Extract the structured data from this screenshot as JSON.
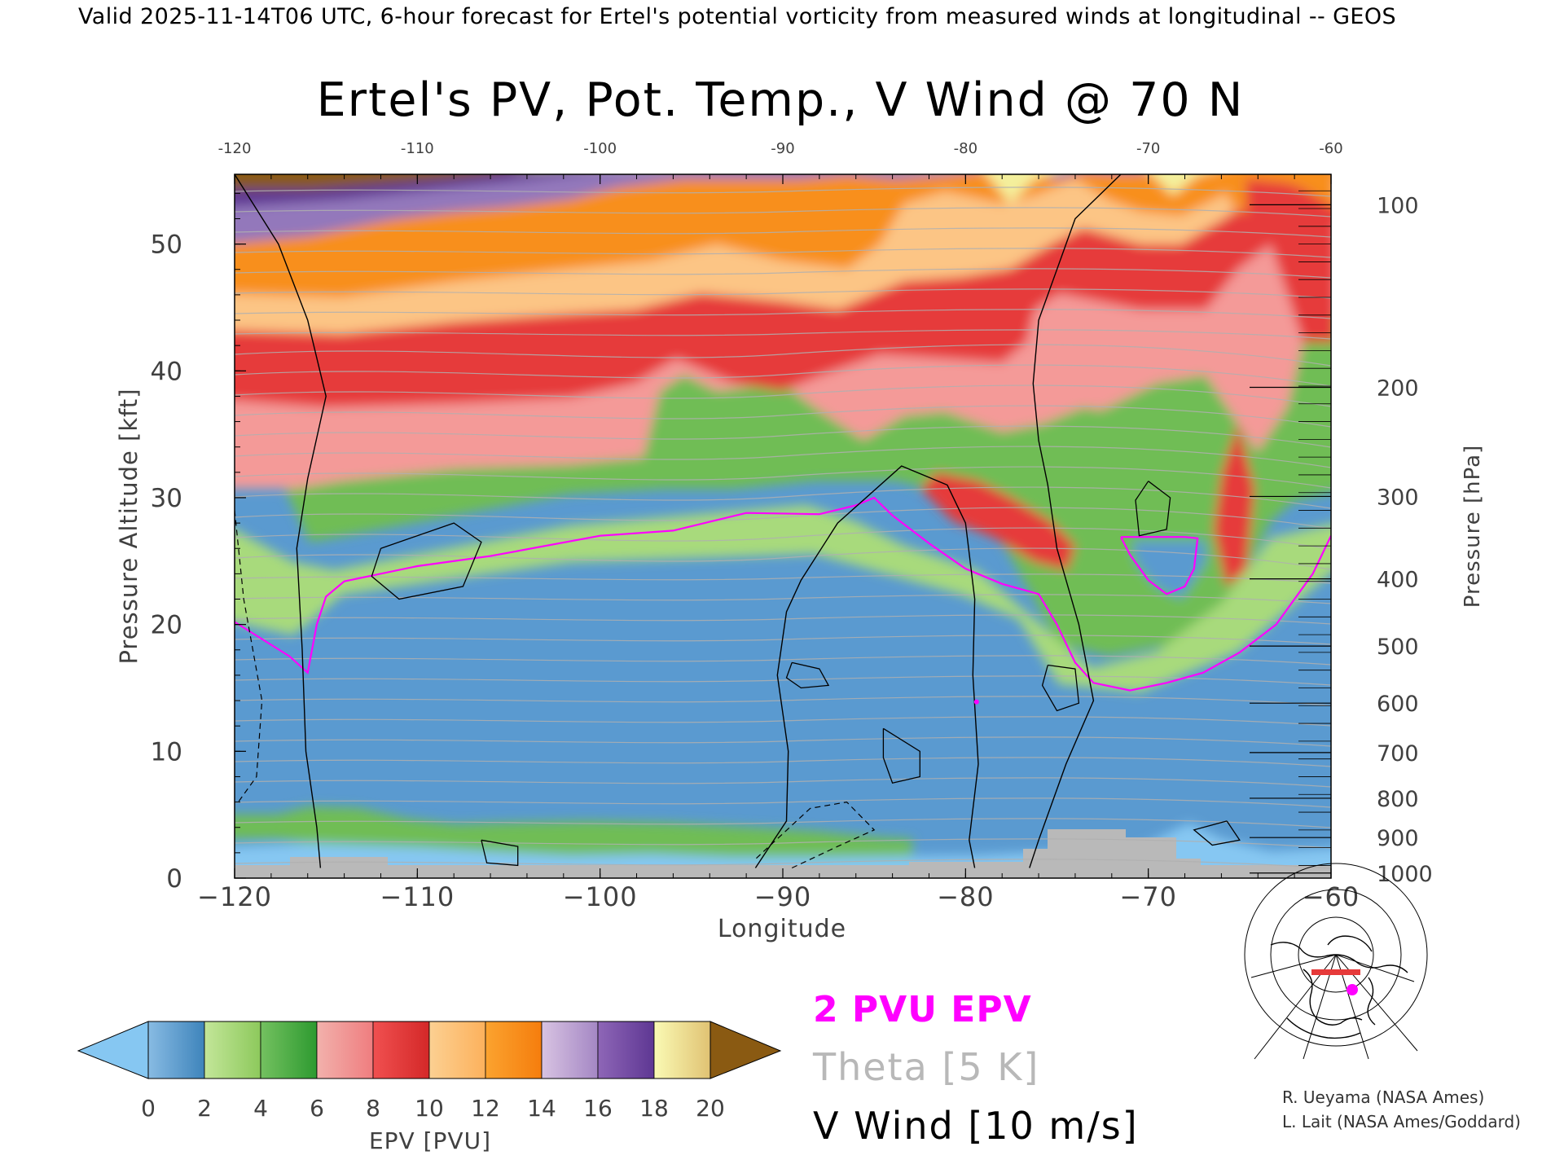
{
  "header": "Valid 2025-11-14T06 UTC, 6-hour forecast for Ertel's potential vorticity from measured winds at longitudinal -- GEOS",
  "chart_data": {
    "type": "heatmap",
    "title": "Ertel's PV, Pot. Temp., V Wind @ 70 N",
    "xlabel": "Longitude",
    "ylabel_left": "Pressure Altitude [kft]",
    "ylabel_right": "Pressure [hPa]",
    "xlim": [
      -120,
      -60
    ],
    "ylim": [
      0,
      55.5
    ],
    "x_ticks": [
      -120,
      -110,
      -100,
      -90,
      -80,
      -70,
      -60
    ],
    "x_tick_labels": [
      "−120",
      "−110",
      "−100",
      "−90",
      "−80",
      "−70",
      "−60"
    ],
    "top_tick_labels": [
      "-120",
      "-110",
      "-100",
      "-90",
      "-80",
      "-70",
      "-60"
    ],
    "y_ticks": [
      0,
      10,
      20,
      30,
      40,
      50
    ],
    "pressure_ticks": [
      {
        "label": "100",
        "kft": 53.1
      },
      {
        "label": "200",
        "kft": 38.7
      },
      {
        "label": "300",
        "kft": 30.1
      },
      {
        "label": "400",
        "kft": 23.6
      },
      {
        "label": "500",
        "kft": 18.3
      },
      {
        "label": "600",
        "kft": 13.8
      },
      {
        "label": "700",
        "kft": 9.9
      },
      {
        "label": "800",
        "kft": 6.3
      },
      {
        "label": "900",
        "kft": 3.2
      },
      {
        "label": "1000",
        "kft": 0.4
      }
    ],
    "colorbar": {
      "label": "EPV [PVU]",
      "tick_labels": [
        "0",
        "2",
        "4",
        "6",
        "8",
        "10",
        "12",
        "14",
        "16",
        "18",
        "20"
      ],
      "bins": [
        {
          "range": [
            0,
            2
          ],
          "colors": [
            "#88bbe3",
            "#3e84bb"
          ]
        },
        {
          "range": [
            2,
            4
          ],
          "colors": [
            "#c3e699",
            "#8dc95c"
          ]
        },
        {
          "range": [
            4,
            6
          ],
          "colors": [
            "#74c160",
            "#2d9a30"
          ]
        },
        {
          "range": [
            6,
            8
          ],
          "colors": [
            "#f2b1ac",
            "#ef7d7f"
          ]
        },
        {
          "range": [
            8,
            10
          ],
          "colors": [
            "#f05050",
            "#d42828"
          ]
        },
        {
          "range": [
            10,
            12
          ],
          "colors": [
            "#fcd092",
            "#fcb15c"
          ]
        },
        {
          "range": [
            12,
            14
          ],
          "colors": [
            "#fba32f",
            "#f57d0d"
          ]
        },
        {
          "range": [
            14,
            16
          ],
          "colors": [
            "#d8c3e2",
            "#a487c4"
          ]
        },
        {
          "range": [
            16,
            18
          ],
          "colors": [
            "#8e66b7",
            "#5e3793"
          ]
        },
        {
          "range": [
            18,
            20
          ],
          "colors": [
            "#fafab4",
            "#e0c273"
          ]
        }
      ],
      "under_color": "#86c7f2",
      "over_color": "#8a5a12"
    },
    "legend": [
      {
        "label": "2 PVU EPV",
        "color": "#ff00ff"
      },
      {
        "label": "Theta [5 K]",
        "color": "#b8b8b8"
      },
      {
        "label": "V Wind [10 m/s]",
        "color": "#000000"
      }
    ],
    "credits": [
      "R. Ueyama (NASA Ames)",
      "L. Lait (NASA Ames/Goddard)"
    ],
    "pv2_contour": [
      [
        -120,
        20.2
      ],
      [
        -117,
        17.5
      ],
      [
        -116,
        16.2
      ],
      [
        -115.5,
        20
      ],
      [
        -115,
        22.2
      ],
      [
        -114,
        23.4
      ],
      [
        -110,
        24.6
      ],
      [
        -106,
        25.4
      ],
      [
        -100,
        27
      ],
      [
        -96,
        27.4
      ],
      [
        -92,
        28.8
      ],
      [
        -88,
        28.7
      ],
      [
        -86,
        29.4
      ],
      [
        -85,
        30
      ],
      [
        -84,
        28.6
      ],
      [
        -82,
        26.4
      ],
      [
        -80,
        24.4
      ],
      [
        -78,
        23.2
      ],
      [
        -77,
        22.8
      ],
      [
        -76,
        22.4
      ],
      [
        -75,
        20
      ],
      [
        -74,
        17
      ],
      [
        -73,
        15.4
      ],
      [
        -71,
        14.8
      ],
      [
        -69,
        15.4
      ],
      [
        -67,
        16.2
      ],
      [
        -65,
        17.8
      ],
      [
        -63,
        20
      ],
      [
        -61,
        24
      ],
      [
        -60,
        27
      ]
    ],
    "pv_tongue_contour": [
      [
        -71.5,
        26.9
      ],
      [
        -71,
        25.5
      ],
      [
        -70,
        23.5
      ],
      [
        -69,
        22.4
      ],
      [
        -68,
        23
      ],
      [
        -67.5,
        24.4
      ],
      [
        -67.3,
        26.8
      ],
      [
        -68,
        26.9
      ],
      [
        -69.5,
        26.9
      ],
      [
        -71.5,
        26.9
      ]
    ],
    "wind_zero_contours": [
      [
        [
          -120,
          55.5
        ],
        [
          -117.6,
          50
        ],
        [
          -116,
          44
        ],
        [
          -115,
          38
        ],
        [
          -116,
          31.5
        ],
        [
          -116.6,
          26
        ],
        [
          -116.3,
          18
        ],
        [
          -116.1,
          10
        ],
        [
          -115.5,
          4
        ],
        [
          -115.3,
          0.8
        ]
      ],
      [
        [
          -91.5,
          0.8
        ],
        [
          -89.8,
          4.5
        ],
        [
          -89.7,
          10
        ],
        [
          -90.3,
          16
        ],
        [
          -89.8,
          21
        ],
        [
          -89,
          23.5
        ],
        [
          -87,
          28
        ],
        [
          -83.5,
          32.5
        ],
        [
          -81,
          31
        ],
        [
          -80,
          28
        ],
        [
          -79.5,
          22
        ],
        [
          -79.6,
          16
        ],
        [
          -79.3,
          9
        ],
        [
          -79.8,
          3
        ],
        [
          -79.5,
          0.8
        ]
      ],
      [
        [
          -71.5,
          55.5
        ],
        [
          -74,
          52
        ],
        [
          -75,
          48
        ],
        [
          -76,
          44
        ],
        [
          -76.3,
          39
        ],
        [
          -76,
          34.5
        ],
        [
          -75.5,
          31
        ],
        [
          -75,
          26
        ],
        [
          -73.8,
          20
        ],
        [
          -73,
          14
        ],
        [
          -74.5,
          9
        ],
        [
          -76,
          3
        ],
        [
          -76.5,
          0.8
        ]
      ]
    ],
    "wind_dashed_contours": [
      [
        [
          -120,
          29
        ],
        [
          -119.5,
          22
        ],
        [
          -118.5,
          14
        ],
        [
          -118.8,
          8
        ],
        [
          -119.8,
          6
        ]
      ],
      [
        [
          -89.5,
          0.8
        ],
        [
          -87,
          2.5
        ],
        [
          -85,
          3.8
        ],
        [
          -86.5,
          6
        ],
        [
          -88.5,
          5.5
        ],
        [
          -91.5,
          1.5
        ]
      ]
    ],
    "wind_closed_contours": [
      [
        [
          -112,
          26
        ],
        [
          -108,
          28
        ],
        [
          -106.5,
          26.5
        ],
        [
          -107.5,
          23
        ],
        [
          -111,
          22
        ],
        [
          -112.5,
          23.8
        ],
        [
          -112,
          26
        ]
      ],
      [
        [
          -89.5,
          17
        ],
        [
          -88,
          16.5
        ],
        [
          -87.5,
          15.2
        ],
        [
          -89,
          15
        ],
        [
          -89.8,
          15.8
        ],
        [
          -89.5,
          17
        ]
      ],
      [
        [
          -84.5,
          11.8
        ],
        [
          -82.5,
          10
        ],
        [
          -82.5,
          8
        ],
        [
          -84,
          7.5
        ],
        [
          -84.5,
          9.5
        ],
        [
          -84.5,
          11.8
        ]
      ],
      [
        [
          -75.5,
          16.8
        ],
        [
          -74,
          16.5
        ],
        [
          -73.8,
          13.8
        ],
        [
          -75,
          13.2
        ],
        [
          -75.8,
          15.2
        ],
        [
          -75.5,
          16.8
        ]
      ],
      [
        [
          -70,
          31.3
        ],
        [
          -68.8,
          30
        ],
        [
          -69,
          27.5
        ],
        [
          -70.5,
          27
        ],
        [
          -70.7,
          29.8
        ],
        [
          -70,
          31.3
        ]
      ],
      [
        [
          -65.7,
          4.5
        ],
        [
          -65,
          3
        ],
        [
          -66.5,
          2.6
        ],
        [
          -67.5,
          3.8
        ],
        [
          -65.7,
          4.5
        ]
      ],
      [
        [
          -106.5,
          3
        ],
        [
          -104.5,
          2.5
        ],
        [
          -104.5,
          1
        ],
        [
          -106.2,
          1.2
        ],
        [
          -106.5,
          3
        ]
      ]
    ]
  }
}
